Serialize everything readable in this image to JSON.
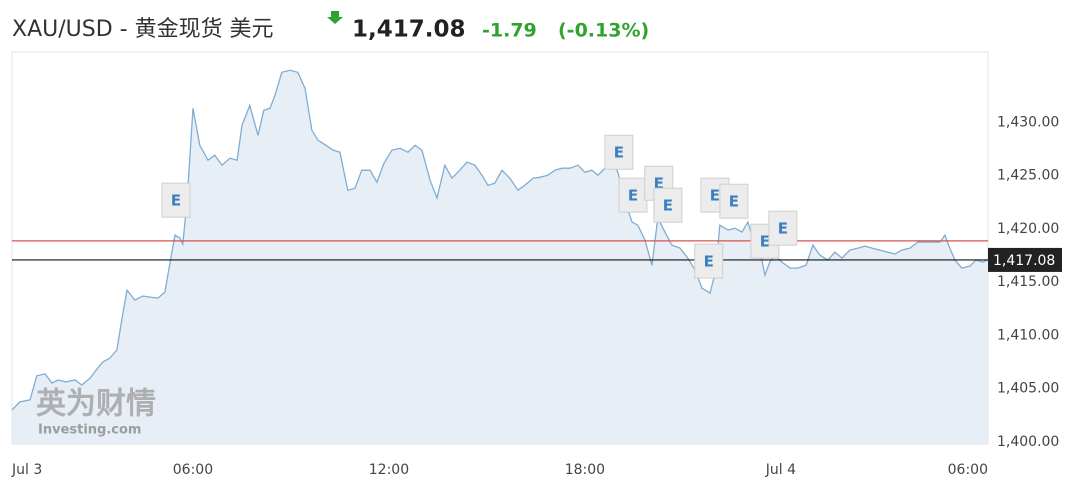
{
  "header": {
    "symbol": "XAU/USD - 黄金现货 美元",
    "price": "1,417.08",
    "change": "-1.79",
    "change_pct": "(-0.13%)"
  },
  "chart_data": {
    "type": "area",
    "watermark": {
      "brand": "英为财情",
      "site": "Investing.com"
    },
    "xlim": [
      0.46,
      30.34
    ],
    "ylim": [
      1399.8,
      1436.6
    ],
    "xticks": [
      {
        "value": 0,
        "label": "Jul 3"
      },
      {
        "value": 6,
        "label": "06:00"
      },
      {
        "value": 12,
        "label": "12:00"
      },
      {
        "value": 18,
        "label": "18:00"
      },
      {
        "value": 24,
        "label": "Jul 4"
      },
      {
        "value": 30,
        "label": "06:00"
      }
    ],
    "yticks": [
      {
        "value": 1400,
        "label": "1,400.00"
      },
      {
        "value": 1405,
        "label": "1,405.00"
      },
      {
        "value": 1410,
        "label": "1,410.00"
      },
      {
        "value": 1415,
        "label": "1,415.00"
      },
      {
        "value": 1420,
        "label": "1,420.00"
      },
      {
        "value": 1425,
        "label": "1,425.00"
      },
      {
        "value": 1430,
        "label": "1,430.00"
      }
    ],
    "grid": false,
    "prev_close": 1418.87,
    "prev_close_color": "#d9534f",
    "last_value": 1417.08,
    "last_value_label": "1,417.08",
    "series": [
      {
        "color": "#7fadd3",
        "x": [
          0.46,
          0.7,
          1.01,
          1.22,
          1.47,
          1.68,
          1.87,
          2.11,
          2.39,
          2.6,
          2.85,
          3.09,
          3.24,
          3.46,
          3.67,
          3.83,
          3.98,
          4.22,
          4.47,
          4.68,
          4.93,
          5.14,
          5.3,
          5.45,
          5.6,
          5.69,
          5.82,
          6.0,
          6.21,
          6.46,
          6.67,
          6.89,
          7.13,
          7.35,
          7.5,
          7.74,
          7.99,
          8.17,
          8.36,
          8.51,
          8.72,
          8.97,
          9.21,
          9.43,
          9.64,
          9.83,
          10.07,
          10.29,
          10.5,
          10.74,
          10.96,
          11.17,
          11.42,
          11.63,
          11.85,
          12.09,
          12.34,
          12.58,
          12.8,
          13.01,
          13.26,
          13.47,
          13.71,
          13.93,
          14.17,
          14.39,
          14.63,
          14.85,
          15.03,
          15.24,
          15.46,
          15.7,
          15.95,
          16.16,
          16.41,
          16.62,
          16.87,
          17.08,
          17.3,
          17.54,
          17.79,
          18.0,
          18.21,
          18.4,
          18.61,
          18.83,
          19.01,
          19.22,
          19.44,
          19.62,
          19.84,
          20.05,
          20.23,
          20.45,
          20.66,
          20.91,
          21.15,
          21.37,
          21.58,
          21.83,
          22.01,
          22.13,
          22.38,
          22.59,
          22.81,
          22.99,
          23.11,
          23.3,
          23.51,
          23.66,
          23.82,
          24.03,
          24.28,
          24.52,
          24.77,
          24.98,
          25.19,
          25.44,
          25.65,
          25.87,
          26.11,
          26.36,
          26.57,
          26.79,
          27.03,
          27.28,
          27.49,
          27.7,
          27.95,
          28.19,
          28.41,
          28.62,
          28.87,
          29.02,
          29.17,
          29.33,
          29.54,
          29.79,
          29.97,
          30.18,
          30.34
        ],
        "values": [
          1403.0,
          1403.75,
          1403.94,
          1406.19,
          1406.38,
          1405.53,
          1405.81,
          1405.63,
          1405.81,
          1405.34,
          1406.0,
          1406.94,
          1407.5,
          1407.88,
          1408.63,
          1411.63,
          1414.25,
          1413.31,
          1413.69,
          1413.59,
          1413.5,
          1414.06,
          1416.88,
          1419.41,
          1419.13,
          1418.56,
          1422.69,
          1431.31,
          1427.84,
          1426.44,
          1426.91,
          1425.97,
          1426.63,
          1426.44,
          1429.72,
          1431.59,
          1428.78,
          1431.13,
          1431.31,
          1432.53,
          1434.69,
          1434.88,
          1434.69,
          1433.19,
          1429.25,
          1428.31,
          1427.84,
          1427.38,
          1427.19,
          1423.63,
          1423.81,
          1425.5,
          1425.5,
          1424.38,
          1426.16,
          1427.38,
          1427.56,
          1427.19,
          1427.84,
          1427.38,
          1424.56,
          1422.88,
          1425.97,
          1424.75,
          1425.5,
          1426.25,
          1425.97,
          1425.03,
          1424.09,
          1424.28,
          1425.5,
          1424.75,
          1423.63,
          1424.09,
          1424.75,
          1424.84,
          1425.03,
          1425.5,
          1425.69,
          1425.69,
          1425.97,
          1425.31,
          1425.5,
          1425.03,
          1425.69,
          1426.44,
          1425.31,
          1422.69,
          1420.63,
          1420.34,
          1418.94,
          1416.59,
          1421.0,
          1419.69,
          1418.47,
          1418.19,
          1417.25,
          1416.13,
          1414.44,
          1413.97,
          1416.13,
          1420.34,
          1419.88,
          1420.06,
          1419.69,
          1420.63,
          1419.41,
          1418.94,
          1415.66,
          1416.88,
          1417.53,
          1416.88,
          1416.31,
          1416.31,
          1416.59,
          1418.47,
          1417.53,
          1417.06,
          1417.81,
          1417.25,
          1418.0,
          1418.19,
          1418.38,
          1418.19,
          1418.0,
          1417.81,
          1417.63,
          1418.0,
          1418.19,
          1418.75,
          1418.75,
          1418.75,
          1418.75,
          1419.41,
          1418.19,
          1417.06,
          1416.31,
          1416.5,
          1417.06,
          1416.88,
          1417.08
        ]
      }
    ],
    "events": [
      {
        "x": 5.48,
        "y": 1422.69,
        "label": "E"
      },
      {
        "x": 19.04,
        "y": 1427.19,
        "label": "E"
      },
      {
        "x": 19.47,
        "y": 1423.16,
        "label": "E"
      },
      {
        "x": 20.26,
        "y": 1424.28,
        "label": "E"
      },
      {
        "x": 20.54,
        "y": 1422.22,
        "label": "E"
      },
      {
        "x": 21.79,
        "y": 1416.97,
        "label": "E"
      },
      {
        "x": 21.98,
        "y": 1423.16,
        "label": "E"
      },
      {
        "x": 22.56,
        "y": 1422.59,
        "label": "E"
      },
      {
        "x": 23.51,
        "y": 1418.84,
        "label": "E"
      },
      {
        "x": 24.06,
        "y": 1420.06,
        "label": "E"
      }
    ]
  }
}
